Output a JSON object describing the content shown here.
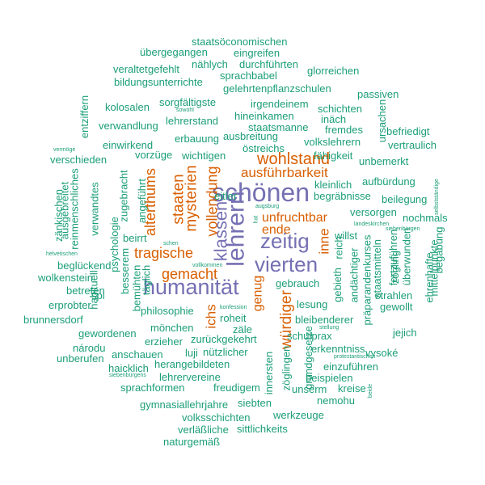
{
  "colors": {
    "green": "#1b9e77",
    "orange": "#d95f02",
    "purple": "#7570b3"
  },
  "words": [
    {
      "text": "schönen",
      "color": "purple",
      "level": 6
    },
    {
      "text": "lehrern",
      "color": "purple",
      "level": 6
    },
    {
      "text": "humanität",
      "color": "purple",
      "level": 5
    },
    {
      "text": "vierten",
      "color": "purple",
      "level": 5
    },
    {
      "text": "zeitig",
      "color": "purple",
      "level": 5
    },
    {
      "text": "klassen",
      "color": "purple",
      "level": 5
    },
    {
      "text": "wohlstand",
      "color": "orange",
      "level": 4
    },
    {
      "text": "ausführbarkeit",
      "color": "orange",
      "level": 4
    },
    {
      "text": "tragische",
      "color": "orange",
      "level": 4
    },
    {
      "text": "gemacht",
      "color": "orange",
      "level": 4
    },
    {
      "text": "staaten",
      "color": "orange",
      "level": 4
    },
    {
      "text": "mysterien",
      "color": "orange",
      "level": 4
    },
    {
      "text": "vollendung",
      "color": "orange",
      "level": 4
    },
    {
      "text": "alterthums",
      "color": "orange",
      "level": 4
    },
    {
      "text": "würdiger",
      "color": "orange",
      "level": 4
    },
    {
      "text": "genug",
      "color": "orange",
      "level": 3
    },
    {
      "text": "unfruchtbar",
      "color": "orange",
      "level": 3
    },
    {
      "text": "ende",
      "color": "orange",
      "level": 3
    },
    {
      "text": "ichs",
      "color": "orange",
      "level": 3
    },
    {
      "text": "inne",
      "color": "orange",
      "level": 3
    },
    {
      "text": "staatsöconomischen",
      "color": "green",
      "level": 2
    },
    {
      "text": "übergegangen",
      "color": "green",
      "level": 2
    },
    {
      "text": "eingreifen",
      "color": "green",
      "level": 2
    },
    {
      "text": "gefehlt",
      "color": "green",
      "level": 2
    },
    {
      "text": "nählych",
      "color": "green",
      "level": 2
    },
    {
      "text": "durchführten",
      "color": "green",
      "level": 2
    },
    {
      "text": "veraltet",
      "color": "green",
      "level": 2
    },
    {
      "text": "sprachbabel",
      "color": "green",
      "level": 2
    },
    {
      "text": "glorreichen",
      "color": "green",
      "level": 2
    },
    {
      "text": "bildungsunterrichte",
      "color": "green",
      "level": 2
    },
    {
      "text": "gelehrtenpflanzschulen",
      "color": "green",
      "level": 2
    },
    {
      "text": "passiven",
      "color": "green",
      "level": 2
    },
    {
      "text": "kolosalen",
      "color": "green",
      "level": 2
    },
    {
      "text": "sorgfältigste",
      "color": "green",
      "level": 2
    },
    {
      "text": "irgendeinem",
      "color": "green",
      "level": 2
    },
    {
      "text": "schichten",
      "color": "green",
      "level": 2
    },
    {
      "text": "hineinkamen",
      "color": "green",
      "level": 2
    },
    {
      "text": "lehrerstand",
      "color": "green",
      "level": 2
    },
    {
      "text": "verwandlung",
      "color": "green",
      "level": 2
    },
    {
      "text": "inäch",
      "color": "green",
      "level": 2
    },
    {
      "text": "staatsmanne",
      "color": "green",
      "level": 2
    },
    {
      "text": "fremdes",
      "color": "green",
      "level": 2
    },
    {
      "text": "befriedigt",
      "color": "green",
      "level": 2
    },
    {
      "text": "ausbreitung",
      "color": "green",
      "level": 2
    },
    {
      "text": "erbauung",
      "color": "green",
      "level": 2
    },
    {
      "text": "volkslehrern",
      "color": "green",
      "level": 2
    },
    {
      "text": "einwirkend",
      "color": "green",
      "level": 2
    },
    {
      "text": "östreichs",
      "color": "green",
      "level": 2
    },
    {
      "text": "vertraulich",
      "color": "green",
      "level": 2
    },
    {
      "text": "vorzüge",
      "color": "green",
      "level": 2
    },
    {
      "text": "wichtigen",
      "color": "green",
      "level": 2
    },
    {
      "text": "fähigkeit",
      "color": "green",
      "level": 2
    },
    {
      "text": "verschieden",
      "color": "green",
      "level": 2
    },
    {
      "text": "unbemerkt",
      "color": "green",
      "level": 2
    },
    {
      "text": "kleinlich",
      "color": "green",
      "level": 2
    },
    {
      "text": "aufbürdung",
      "color": "green",
      "level": 2
    },
    {
      "text": "eitler",
      "color": "green",
      "level": 2
    },
    {
      "text": "begräbnisse",
      "color": "green",
      "level": 2
    },
    {
      "text": "beilegung",
      "color": "green",
      "level": 2
    },
    {
      "text": "versorgen",
      "color": "green",
      "level": 2
    },
    {
      "text": "nochmals",
      "color": "green",
      "level": 2
    },
    {
      "text": "willst",
      "color": "green",
      "level": 2
    },
    {
      "text": "beirrt",
      "color": "green",
      "level": 2
    },
    {
      "text": "beglückend",
      "color": "green",
      "level": 2
    },
    {
      "text": "wolkenstein",
      "color": "green",
      "level": 2
    },
    {
      "text": "gebrauch",
      "color": "green",
      "level": 2
    },
    {
      "text": "betreten",
      "color": "green",
      "level": 2
    },
    {
      "text": "spi",
      "color": "green",
      "level": 2
    },
    {
      "text": "strahlen",
      "color": "green",
      "level": 2
    },
    {
      "text": "erprobter",
      "color": "green",
      "level": 2
    },
    {
      "text": "philosophie",
      "color": "green",
      "level": 2
    },
    {
      "text": "lesung",
      "color": "green",
      "level": 2
    },
    {
      "text": "gewollt",
      "color": "green",
      "level": 2
    },
    {
      "text": "brunnersdorf",
      "color": "green",
      "level": 2
    },
    {
      "text": "roheit",
      "color": "green",
      "level": 2
    },
    {
      "text": "bleibenderer",
      "color": "green",
      "level": 2
    },
    {
      "text": "gewordenen",
      "color": "green",
      "level": 2
    },
    {
      "text": "mönchen",
      "color": "green",
      "level": 2
    },
    {
      "text": "zäle",
      "color": "green",
      "level": 2
    },
    {
      "text": "schulprax",
      "color": "green",
      "level": 2
    },
    {
      "text": "jejich",
      "color": "green",
      "level": 2
    },
    {
      "text": "národu",
      "color": "green",
      "level": 2
    },
    {
      "text": "erzieher",
      "color": "green",
      "level": 2
    },
    {
      "text": "zurückgekehrt",
      "color": "green",
      "level": 2
    },
    {
      "text": "erkenntniss",
      "color": "green",
      "level": 2
    },
    {
      "text": "vysoké",
      "color": "green",
      "level": 2
    },
    {
      "text": "unberufen",
      "color": "green",
      "level": 2
    },
    {
      "text": "anschauen",
      "color": "green",
      "level": 2
    },
    {
      "text": "luji",
      "color": "green",
      "level": 2
    },
    {
      "text": "nützlicher",
      "color": "green",
      "level": 2
    },
    {
      "text": "haicklich",
      "color": "green",
      "level": 2
    },
    {
      "text": "herangebildeten",
      "color": "green",
      "level": 2
    },
    {
      "text": "einzuführen",
      "color": "green",
      "level": 2
    },
    {
      "text": "lehrervereine",
      "color": "green",
      "level": 2
    },
    {
      "text": "beispielen",
      "color": "green",
      "level": 2
    },
    {
      "text": "sprachformen",
      "color": "green",
      "level": 2
    },
    {
      "text": "freudigem",
      "color": "green",
      "level": 2
    },
    {
      "text": "unserm",
      "color": "green",
      "level": 2
    },
    {
      "text": "kreise",
      "color": "green",
      "level": 2
    },
    {
      "text": "gymnasiallehrjahre",
      "color": "green",
      "level": 2
    },
    {
      "text": "siebten",
      "color": "green",
      "level": 2
    },
    {
      "text": "nemohu",
      "color": "green",
      "level": 2
    },
    {
      "text": "volksschichten",
      "color": "green",
      "level": 2
    },
    {
      "text": "werkzeuge",
      "color": "green",
      "level": 2
    },
    {
      "text": "verläßliche",
      "color": "green",
      "level": 2
    },
    {
      "text": "sittlichkeits",
      "color": "green",
      "level": 2
    },
    {
      "text": "naturgemäß",
      "color": "green",
      "level": 2
    },
    {
      "text": "entziffern",
      "color": "green",
      "level": 2
    },
    {
      "text": "ursachen",
      "color": "green",
      "level": 2
    },
    {
      "text": "zänkischen",
      "color": "green",
      "level": 2
    },
    {
      "text": "ausgebreitet",
      "color": "green",
      "level": 2
    },
    {
      "text": "reinmenschliches",
      "color": "green",
      "level": 2
    },
    {
      "text": "verwandtes",
      "color": "green",
      "level": 2
    },
    {
      "text": "zugebracht",
      "color": "green",
      "level": 2
    },
    {
      "text": "angeführt",
      "color": "green",
      "level": 2
    },
    {
      "text": "psychologie",
      "color": "green",
      "level": 2
    },
    {
      "text": "besserem",
      "color": "green",
      "level": 2
    },
    {
      "text": "habituell",
      "color": "green",
      "level": 2
    },
    {
      "text": "bemühten",
      "color": "green",
      "level": 2
    },
    {
      "text": "täglich",
      "color": "green",
      "level": 2
    },
    {
      "text": "gebieth",
      "color": "green",
      "level": 2
    },
    {
      "text": "reich",
      "color": "green",
      "level": 2
    },
    {
      "text": "andächtiger",
      "color": "green",
      "level": 2
    },
    {
      "text": "präparandenkurses",
      "color": "green",
      "level": 2
    },
    {
      "text": "staatsmitteln",
      "color": "green",
      "level": 2
    },
    {
      "text": "zögling",
      "color": "green",
      "level": 2
    },
    {
      "text": "fortzuführen",
      "color": "green",
      "level": 2
    },
    {
      "text": "überwunden",
      "color": "green",
      "level": 2
    },
    {
      "text": "mittelpunkte",
      "color": "green",
      "level": 2
    },
    {
      "text": "ehrenhafte",
      "color": "green",
      "level": 2
    },
    {
      "text": "begabung",
      "color": "green",
      "level": 2
    },
    {
      "text": "innersten",
      "color": "green",
      "level": 2
    },
    {
      "text": "zöglingen",
      "color": "green",
      "level": 2
    },
    {
      "text": "grundgesetze",
      "color": "green",
      "level": 0
    },
    {
      "text": "vermöge",
      "color": "green",
      "level": 0
    },
    {
      "text": "sowohl",
      "color": "green",
      "level": 0
    },
    {
      "text": "augsburg",
      "color": "green",
      "level": 0
    },
    {
      "text": "landeskirchen",
      "color": "green",
      "level": 0
    },
    {
      "text": "siebenbürgen",
      "color": "green",
      "level": 0
    },
    {
      "text": "helvetischen",
      "color": "green",
      "level": 0
    },
    {
      "text": "schen",
      "color": "green",
      "level": 0
    },
    {
      "text": "vollkommen",
      "color": "green",
      "level": 0
    },
    {
      "text": "konfession",
      "color": "green",
      "level": 0
    },
    {
      "text": "stellung",
      "color": "green",
      "level": 0
    },
    {
      "text": "protestantischen",
      "color": "green",
      "level": 0
    },
    {
      "text": "siebenbürgens",
      "color": "green",
      "level": 0
    },
    {
      "text": "selbstständige",
      "color": "green",
      "level": 0
    },
    {
      "text": "beide",
      "color": "green",
      "level": 0
    },
    {
      "text": "hat",
      "color": "green",
      "level": 0
    }
  ]
}
